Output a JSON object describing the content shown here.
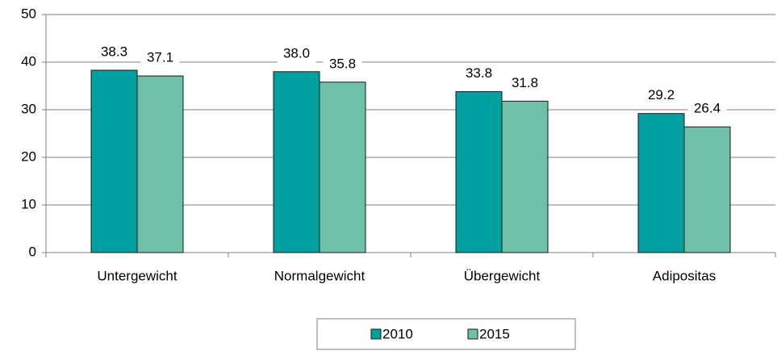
{
  "chart_data": {
    "type": "bar",
    "categories": [
      "Untergewicht",
      "Normalgewicht",
      "Übergewicht",
      "Adipositas"
    ],
    "series": [
      {
        "name": "2010",
        "color": "#00a0a0",
        "values": [
          38.3,
          38.0,
          33.8,
          29.2
        ],
        "value_labels": [
          "38.3",
          "38.0",
          "33.8",
          "29.2"
        ]
      },
      {
        "name": "2015",
        "color": "#6fc0a8",
        "values": [
          37.1,
          35.8,
          31.8,
          26.4
        ],
        "value_labels": [
          "37.1",
          "35.8",
          "31.8",
          "26.4"
        ]
      }
    ],
    "ylim": [
      0,
      50
    ],
    "yticks": [
      0,
      10,
      20,
      30,
      40,
      50
    ],
    "grid": true,
    "legend": "bottom"
  }
}
